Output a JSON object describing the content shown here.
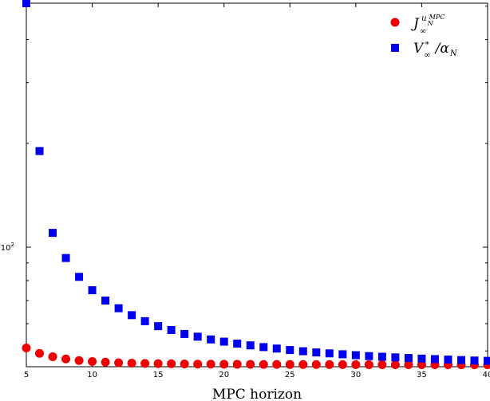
{
  "chart_data": {
    "type": "scatter",
    "xlabel": "MPC horizon",
    "ylabel": "",
    "xlim": [
      5,
      40
    ],
    "ylim": [
      45,
      510
    ],
    "y_scale": "log",
    "grid": false,
    "legend_position": "top-right",
    "x_ticks": [
      "5",
      "10",
      "15",
      "20",
      "25",
      "30",
      "35",
      "40"
    ],
    "y_ticks": [
      {
        "value": 100,
        "label": "10",
        "exponent": "2"
      }
    ],
    "x": [
      5,
      6,
      7,
      8,
      9,
      10,
      11,
      12,
      13,
      14,
      15,
      16,
      17,
      18,
      19,
      20,
      21,
      22,
      23,
      24,
      25,
      26,
      27,
      28,
      29,
      30,
      31,
      32,
      33,
      34,
      35,
      36,
      37,
      38,
      39,
      40
    ],
    "series": [
      {
        "name": "J_∞^{u_N^{MPC}}",
        "marker": "circle",
        "color": "#ee0000",
        "values": [
          51,
          49.2,
          48.1,
          47.4,
          46.9,
          46.6,
          46.4,
          46.2,
          46.1,
          46.0,
          45.95,
          45.9,
          45.85,
          45.8,
          45.78,
          45.76,
          45.74,
          45.72,
          45.7,
          45.69,
          45.68,
          45.67,
          45.66,
          45.65,
          45.64,
          45.63,
          45.62,
          45.62,
          45.61,
          45.61,
          45.6,
          45.6,
          45.6,
          45.59,
          45.59,
          45.59
        ]
      },
      {
        "name": "V_∞^*/α_N",
        "marker": "square",
        "color": "#0000ee",
        "values": [
          510,
          190,
          110,
          93,
          82,
          75,
          70,
          66.5,
          63.5,
          61,
          59,
          57.5,
          56,
          55,
          54,
          53.2,
          52.5,
          51.9,
          51.3,
          50.8,
          50.3,
          49.9,
          49.5,
          49.2,
          48.9,
          48.6,
          48.3,
          48.1,
          47.9,
          47.7,
          47.5,
          47.35,
          47.2,
          47.05,
          46.9,
          46.8
        ]
      }
    ]
  }
}
